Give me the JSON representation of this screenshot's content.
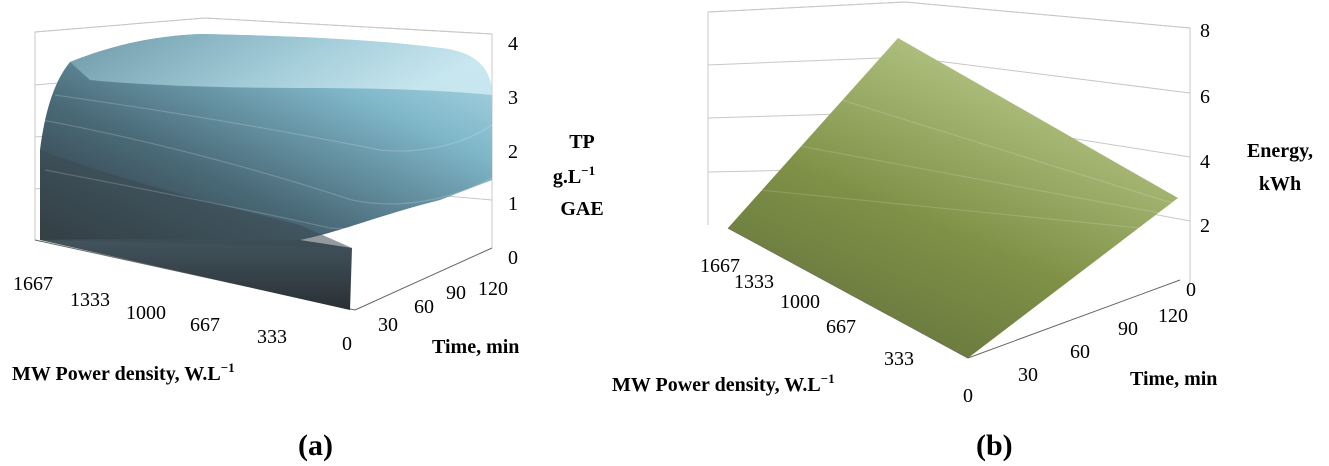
{
  "chart_data": [
    {
      "type": "surface",
      "panel_label": "(a)",
      "xlabel": "MW Power density, W.L",
      "xlabel_sup": "−1",
      "x_ticks": [
        "1667",
        "1333",
        "1000",
        "667",
        "333",
        "0"
      ],
      "ylabel": "Time, min",
      "y_ticks": [
        "0",
        "30",
        "60",
        "90",
        "120"
      ],
      "zlabel_lines": [
        "TP",
        "g.L",
        "GAE"
      ],
      "zlabel_sup": "−1",
      "z_ticks": [
        "0",
        "1",
        "2",
        "3",
        "4"
      ],
      "zlim": [
        0,
        4
      ],
      "surface_color": "#7ec5d8",
      "approx_surface": {
        "power_density": [
          0,
          333,
          667,
          1000,
          1333,
          1667
        ],
        "time": [
          0,
          30,
          60,
          90,
          120
        ],
        "z_at_time0": [
          0,
          0,
          0,
          0,
          0,
          0
        ],
        "z_plateau": 3.7
      }
    },
    {
      "type": "surface",
      "panel_label": "(b)",
      "xlabel": "MW Power density, W.L",
      "xlabel_sup": "−1",
      "x_ticks": [
        "1667",
        "1333",
        "1000",
        "667",
        "333",
        "0"
      ],
      "ylabel": "Time, min",
      "y_ticks": [
        "0",
        "30",
        "60",
        "90",
        "120"
      ],
      "zlabel_lines": [
        "Energy,",
        "kWh"
      ],
      "z_ticks": [
        "0",
        "2",
        "4",
        "6",
        "8"
      ],
      "zlim": [
        0,
        8
      ],
      "surface_color": "#9aae5c",
      "approx_surface": {
        "corners": [
          {
            "power_density": 0,
            "time": 0,
            "z": 0
          },
          {
            "power_density": 0,
            "time": 120,
            "z": 2.7
          },
          {
            "power_density": 1667,
            "time": 0,
            "z": 0
          },
          {
            "power_density": 1667,
            "time": 120,
            "z": 7.7
          }
        ]
      }
    }
  ]
}
